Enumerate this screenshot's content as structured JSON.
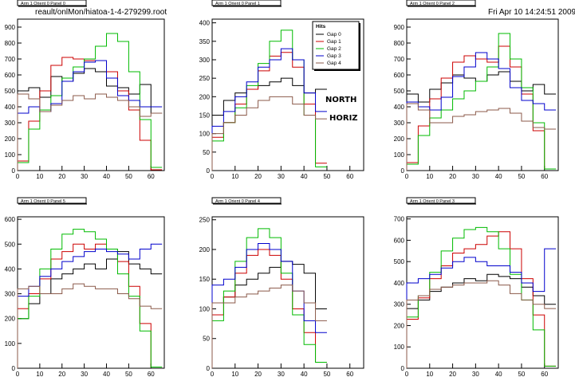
{
  "header": {
    "file_label": "reault/onlMon/hiatoa-1-4-279299.root",
    "timestamp": "Fri Apr 10 14:24:51 2009"
  },
  "annotations": {
    "north": "NORTH",
    "horiz": "HORIZ"
  },
  "colors": {
    "Gap 0": "#000000",
    "Gap 1": "#cc0000",
    "Gap 2": "#00bb00",
    "Gap 3": "#0000cc",
    "Gap 4": "#8b5a4a"
  },
  "chart_data": [
    {
      "type": "line",
      "title": "Arm 1 Orient 0 Panel 0",
      "xlim": [
        0,
        66
      ],
      "ylim": [
        0,
        950
      ],
      "xticks": [
        0,
        10,
        20,
        30,
        40,
        50,
        60
      ],
      "yticks": [
        0,
        100,
        200,
        300,
        400,
        500,
        600,
        700,
        800,
        900
      ],
      "series": [
        {
          "name": "Gap 0",
          "x": [
            0,
            5,
            10,
            15,
            20,
            25,
            30,
            35,
            40,
            45,
            50,
            55,
            60
          ],
          "values": [
            500,
            520,
            460,
            590,
            560,
            610,
            640,
            620,
            530,
            520,
            480,
            540,
            360
          ]
        },
        {
          "name": "Gap 1",
          "x": [
            0,
            5,
            10,
            15,
            20,
            25,
            30,
            35,
            40,
            45,
            50,
            55,
            60
          ],
          "values": [
            60,
            310,
            500,
            660,
            710,
            700,
            690,
            690,
            620,
            500,
            380,
            190,
            5
          ]
        },
        {
          "name": "Gap 2",
          "x": [
            0,
            5,
            10,
            15,
            20,
            25,
            30,
            35,
            40,
            45,
            50,
            55,
            60
          ],
          "values": [
            50,
            260,
            380,
            470,
            580,
            650,
            700,
            780,
            860,
            810,
            620,
            320,
            20
          ]
        },
        {
          "name": "Gap 3",
          "x": [
            0,
            5,
            10,
            15,
            20,
            25,
            30,
            35,
            40,
            45,
            50,
            55,
            60
          ],
          "values": [
            360,
            400,
            370,
            420,
            560,
            620,
            680,
            690,
            580,
            470,
            440,
            400,
            400
          ]
        },
        {
          "name": "Gap 4",
          "x": [
            0,
            5,
            10,
            15,
            20,
            25,
            30,
            35,
            40,
            45,
            50,
            55,
            60
          ],
          "values": [
            480,
            450,
            370,
            410,
            440,
            470,
            450,
            480,
            460,
            440,
            400,
            340,
            360
          ]
        }
      ]
    },
    {
      "type": "line",
      "title": "Arm 1 Orient 0 Panel 1",
      "xlim": [
        0,
        66
      ],
      "ylim": [
        0,
        410
      ],
      "xticks": [
        0,
        10,
        20,
        30,
        40,
        50,
        60
      ],
      "yticks": [
        0,
        50,
        100,
        150,
        200,
        250,
        300,
        350,
        400
      ],
      "legend": {
        "title": "Hits",
        "entries": [
          "Gap 0",
          "Gap 1",
          "Gap 2",
          "Gap 3",
          "Gap 4"
        ],
        "position": "top-right"
      },
      "series": [
        {
          "name": "Gap 0",
          "x": [
            0,
            5,
            10,
            15,
            20,
            25,
            30,
            35,
            40,
            45
          ],
          "values": [
            150,
            190,
            210,
            220,
            230,
            240,
            250,
            230,
            210,
            220
          ]
        },
        {
          "name": "Gap 1",
          "x": [
            0,
            5,
            10,
            15,
            20,
            25,
            30,
            35,
            40,
            45
          ],
          "values": [
            90,
            130,
            180,
            220,
            270,
            310,
            320,
            280,
            180,
            20
          ]
        },
        {
          "name": "Gap 2",
          "x": [
            0,
            5,
            10,
            15,
            20,
            25,
            30,
            35,
            40,
            45
          ],
          "values": [
            80,
            130,
            170,
            230,
            290,
            350,
            380,
            300,
            150,
            10
          ]
        },
        {
          "name": "Gap 3",
          "x": [
            0,
            5,
            10,
            15,
            20,
            25,
            30,
            35,
            40,
            45
          ],
          "values": [
            120,
            160,
            200,
            240,
            280,
            300,
            330,
            300,
            210,
            160
          ]
        },
        {
          "name": "Gap 4",
          "x": [
            0,
            5,
            10,
            15,
            20,
            25,
            30,
            35,
            40,
            45
          ],
          "values": [
            100,
            130,
            150,
            170,
            190,
            200,
            200,
            180,
            150,
            140
          ]
        }
      ]
    },
    {
      "type": "line",
      "title": "Arm 1 Orient 0 Panel 2",
      "xlim": [
        0,
        66
      ],
      "ylim": [
        0,
        950
      ],
      "xticks": [
        0,
        10,
        20,
        30,
        40,
        50,
        60
      ],
      "yticks": [
        0,
        100,
        200,
        300,
        400,
        500,
        600,
        700,
        800,
        900
      ],
      "series": [
        {
          "name": "Gap 0",
          "x": [
            0,
            5,
            10,
            15,
            20,
            25,
            30,
            35,
            40,
            45,
            50,
            55,
            60
          ],
          "values": [
            480,
            430,
            510,
            550,
            600,
            580,
            560,
            600,
            620,
            560,
            500,
            540,
            480
          ]
        },
        {
          "name": "Gap 1",
          "x": [
            0,
            5,
            10,
            15,
            20,
            25,
            30,
            35,
            40,
            45,
            50,
            55,
            60
          ],
          "values": [
            50,
            280,
            450,
            580,
            680,
            720,
            700,
            680,
            780,
            650,
            480,
            250,
            10
          ]
        },
        {
          "name": "Gap 2",
          "x": [
            0,
            5,
            10,
            15,
            20,
            25,
            30,
            35,
            40,
            45,
            50,
            55,
            60
          ],
          "values": [
            40,
            220,
            330,
            380,
            450,
            500,
            560,
            650,
            860,
            700,
            520,
            300,
            10
          ]
        },
        {
          "name": "Gap 3",
          "x": [
            0,
            5,
            10,
            15,
            20,
            25,
            30,
            35,
            40,
            45,
            50,
            55,
            60
          ],
          "values": [
            430,
            400,
            380,
            460,
            590,
            650,
            740,
            700,
            640,
            520,
            440,
            420,
            380
          ]
        },
        {
          "name": "Gap 4",
          "x": [
            0,
            5,
            10,
            15,
            20,
            25,
            30,
            35,
            40,
            45,
            50,
            55,
            60
          ],
          "values": [
            420,
            380,
            300,
            300,
            340,
            350,
            370,
            380,
            390,
            360,
            310,
            270,
            260
          ]
        }
      ]
    },
    {
      "type": "line",
      "title": "Arm 1 Orient 0 Panel 5",
      "xlim": [
        0,
        66
      ],
      "ylim": [
        0,
        610
      ],
      "xticks": [
        0,
        10,
        20,
        30,
        40,
        50,
        60
      ],
      "yticks": [
        0,
        100,
        200,
        300,
        400,
        500,
        600
      ],
      "series": [
        {
          "name": "Gap 0",
          "x": [
            0,
            5,
            10,
            15,
            20,
            25,
            30,
            35,
            40,
            45,
            50,
            55,
            60
          ],
          "values": [
            200,
            260,
            300,
            360,
            380,
            400,
            420,
            400,
            440,
            470,
            420,
            400,
            380
          ]
        },
        {
          "name": "Gap 1",
          "x": [
            0,
            5,
            10,
            15,
            20,
            25,
            30,
            35,
            40,
            45,
            50,
            55,
            60
          ],
          "values": [
            240,
            300,
            360,
            440,
            470,
            500,
            480,
            500,
            480,
            430,
            330,
            180,
            5
          ]
        },
        {
          "name": "Gap 2",
          "x": [
            0,
            5,
            10,
            15,
            20,
            25,
            30,
            35,
            40,
            45,
            50,
            55,
            60
          ],
          "values": [
            200,
            290,
            400,
            480,
            540,
            560,
            550,
            520,
            480,
            380,
            290,
            150,
            5
          ]
        },
        {
          "name": "Gap 3",
          "x": [
            0,
            5,
            10,
            15,
            20,
            25,
            30,
            35,
            40,
            45,
            50,
            55,
            60
          ],
          "values": [
            290,
            330,
            370,
            400,
            430,
            450,
            470,
            480,
            470,
            460,
            440,
            480,
            500
          ]
        },
        {
          "name": "Gap 4",
          "x": [
            0,
            5,
            10,
            15,
            20,
            25,
            30,
            35,
            40,
            45,
            50,
            55,
            60
          ],
          "values": [
            320,
            330,
            300,
            300,
            320,
            340,
            330,
            320,
            320,
            300,
            280,
            250,
            240
          ]
        }
      ]
    },
    {
      "type": "line",
      "title": "Arm 1 Orient 0 Panel 4",
      "xlim": [
        0,
        66
      ],
      "ylim": [
        0,
        255
      ],
      "xticks": [
        0,
        10,
        20,
        30,
        40,
        50,
        60
      ],
      "yticks": [
        0,
        50,
        100,
        150,
        200,
        250
      ],
      "series": [
        {
          "name": "Gap 0",
          "x": [
            0,
            5,
            10,
            15,
            20,
            25,
            30,
            35,
            40,
            45
          ],
          "values": [
            110,
            120,
            140,
            150,
            160,
            170,
            180,
            175,
            160,
            100
          ]
        },
        {
          "name": "Gap 1",
          "x": [
            0,
            5,
            10,
            15,
            20,
            25,
            30,
            35,
            40,
            45
          ],
          "values": [
            90,
            120,
            160,
            190,
            200,
            190,
            150,
            100,
            60,
            10
          ]
        },
        {
          "name": "Gap 2",
          "x": [
            0,
            5,
            10,
            15,
            20,
            25,
            30,
            35,
            40,
            45
          ],
          "values": [
            80,
            130,
            180,
            220,
            235,
            220,
            160,
            90,
            40,
            10
          ]
        },
        {
          "name": "Gap 3",
          "x": [
            0,
            5,
            10,
            15,
            20,
            25,
            30,
            35,
            40,
            45
          ],
          "values": [
            140,
            150,
            170,
            200,
            210,
            200,
            180,
            130,
            80,
            60
          ]
        },
        {
          "name": "Gap 4",
          "x": [
            0,
            5,
            10,
            15,
            20,
            25,
            30,
            35,
            40,
            45
          ],
          "values": [
            110,
            110,
            120,
            125,
            130,
            135,
            140,
            130,
            110,
            80
          ]
        }
      ]
    },
    {
      "type": "line",
      "title": "Arm 1 Orient 0 Panel 3",
      "xlim": [
        0,
        66
      ],
      "ylim": [
        0,
        710
      ],
      "xticks": [
        0,
        10,
        20,
        30,
        40,
        50,
        60
      ],
      "yticks": [
        0,
        100,
        200,
        300,
        400,
        500,
        600,
        700
      ],
      "series": [
        {
          "name": "Gap 0",
          "x": [
            0,
            5,
            10,
            15,
            20,
            25,
            30,
            35,
            40,
            45,
            50,
            55,
            60
          ],
          "values": [
            280,
            320,
            360,
            380,
            400,
            420,
            410,
            440,
            430,
            420,
            380,
            340,
            300
          ]
        },
        {
          "name": "Gap 1",
          "x": [
            0,
            5,
            10,
            15,
            20,
            25,
            30,
            35,
            40,
            45,
            50,
            55,
            60
          ],
          "values": [
            230,
            330,
            420,
            480,
            540,
            560,
            580,
            620,
            640,
            560,
            420,
            250,
            10
          ]
        },
        {
          "name": "Gap 2",
          "x": [
            0,
            5,
            10,
            15,
            20,
            25,
            30,
            35,
            40,
            45,
            50,
            55,
            60
          ],
          "values": [
            240,
            340,
            450,
            550,
            610,
            650,
            660,
            640,
            560,
            440,
            320,
            180,
            10
          ]
        },
        {
          "name": "Gap 3",
          "x": [
            0,
            5,
            10,
            15,
            20,
            25,
            30,
            35,
            40,
            45,
            50,
            55,
            60
          ],
          "values": [
            400,
            420,
            440,
            470,
            500,
            520,
            500,
            480,
            480,
            450,
            400,
            360,
            560
          ]
        },
        {
          "name": "Gap 4",
          "x": [
            0,
            5,
            10,
            15,
            20,
            25,
            30,
            35,
            40,
            45,
            50,
            55,
            60
          ],
          "values": [
            320,
            340,
            370,
            380,
            390,
            400,
            400,
            410,
            390,
            350,
            320,
            300,
            280
          ]
        }
      ]
    }
  ]
}
